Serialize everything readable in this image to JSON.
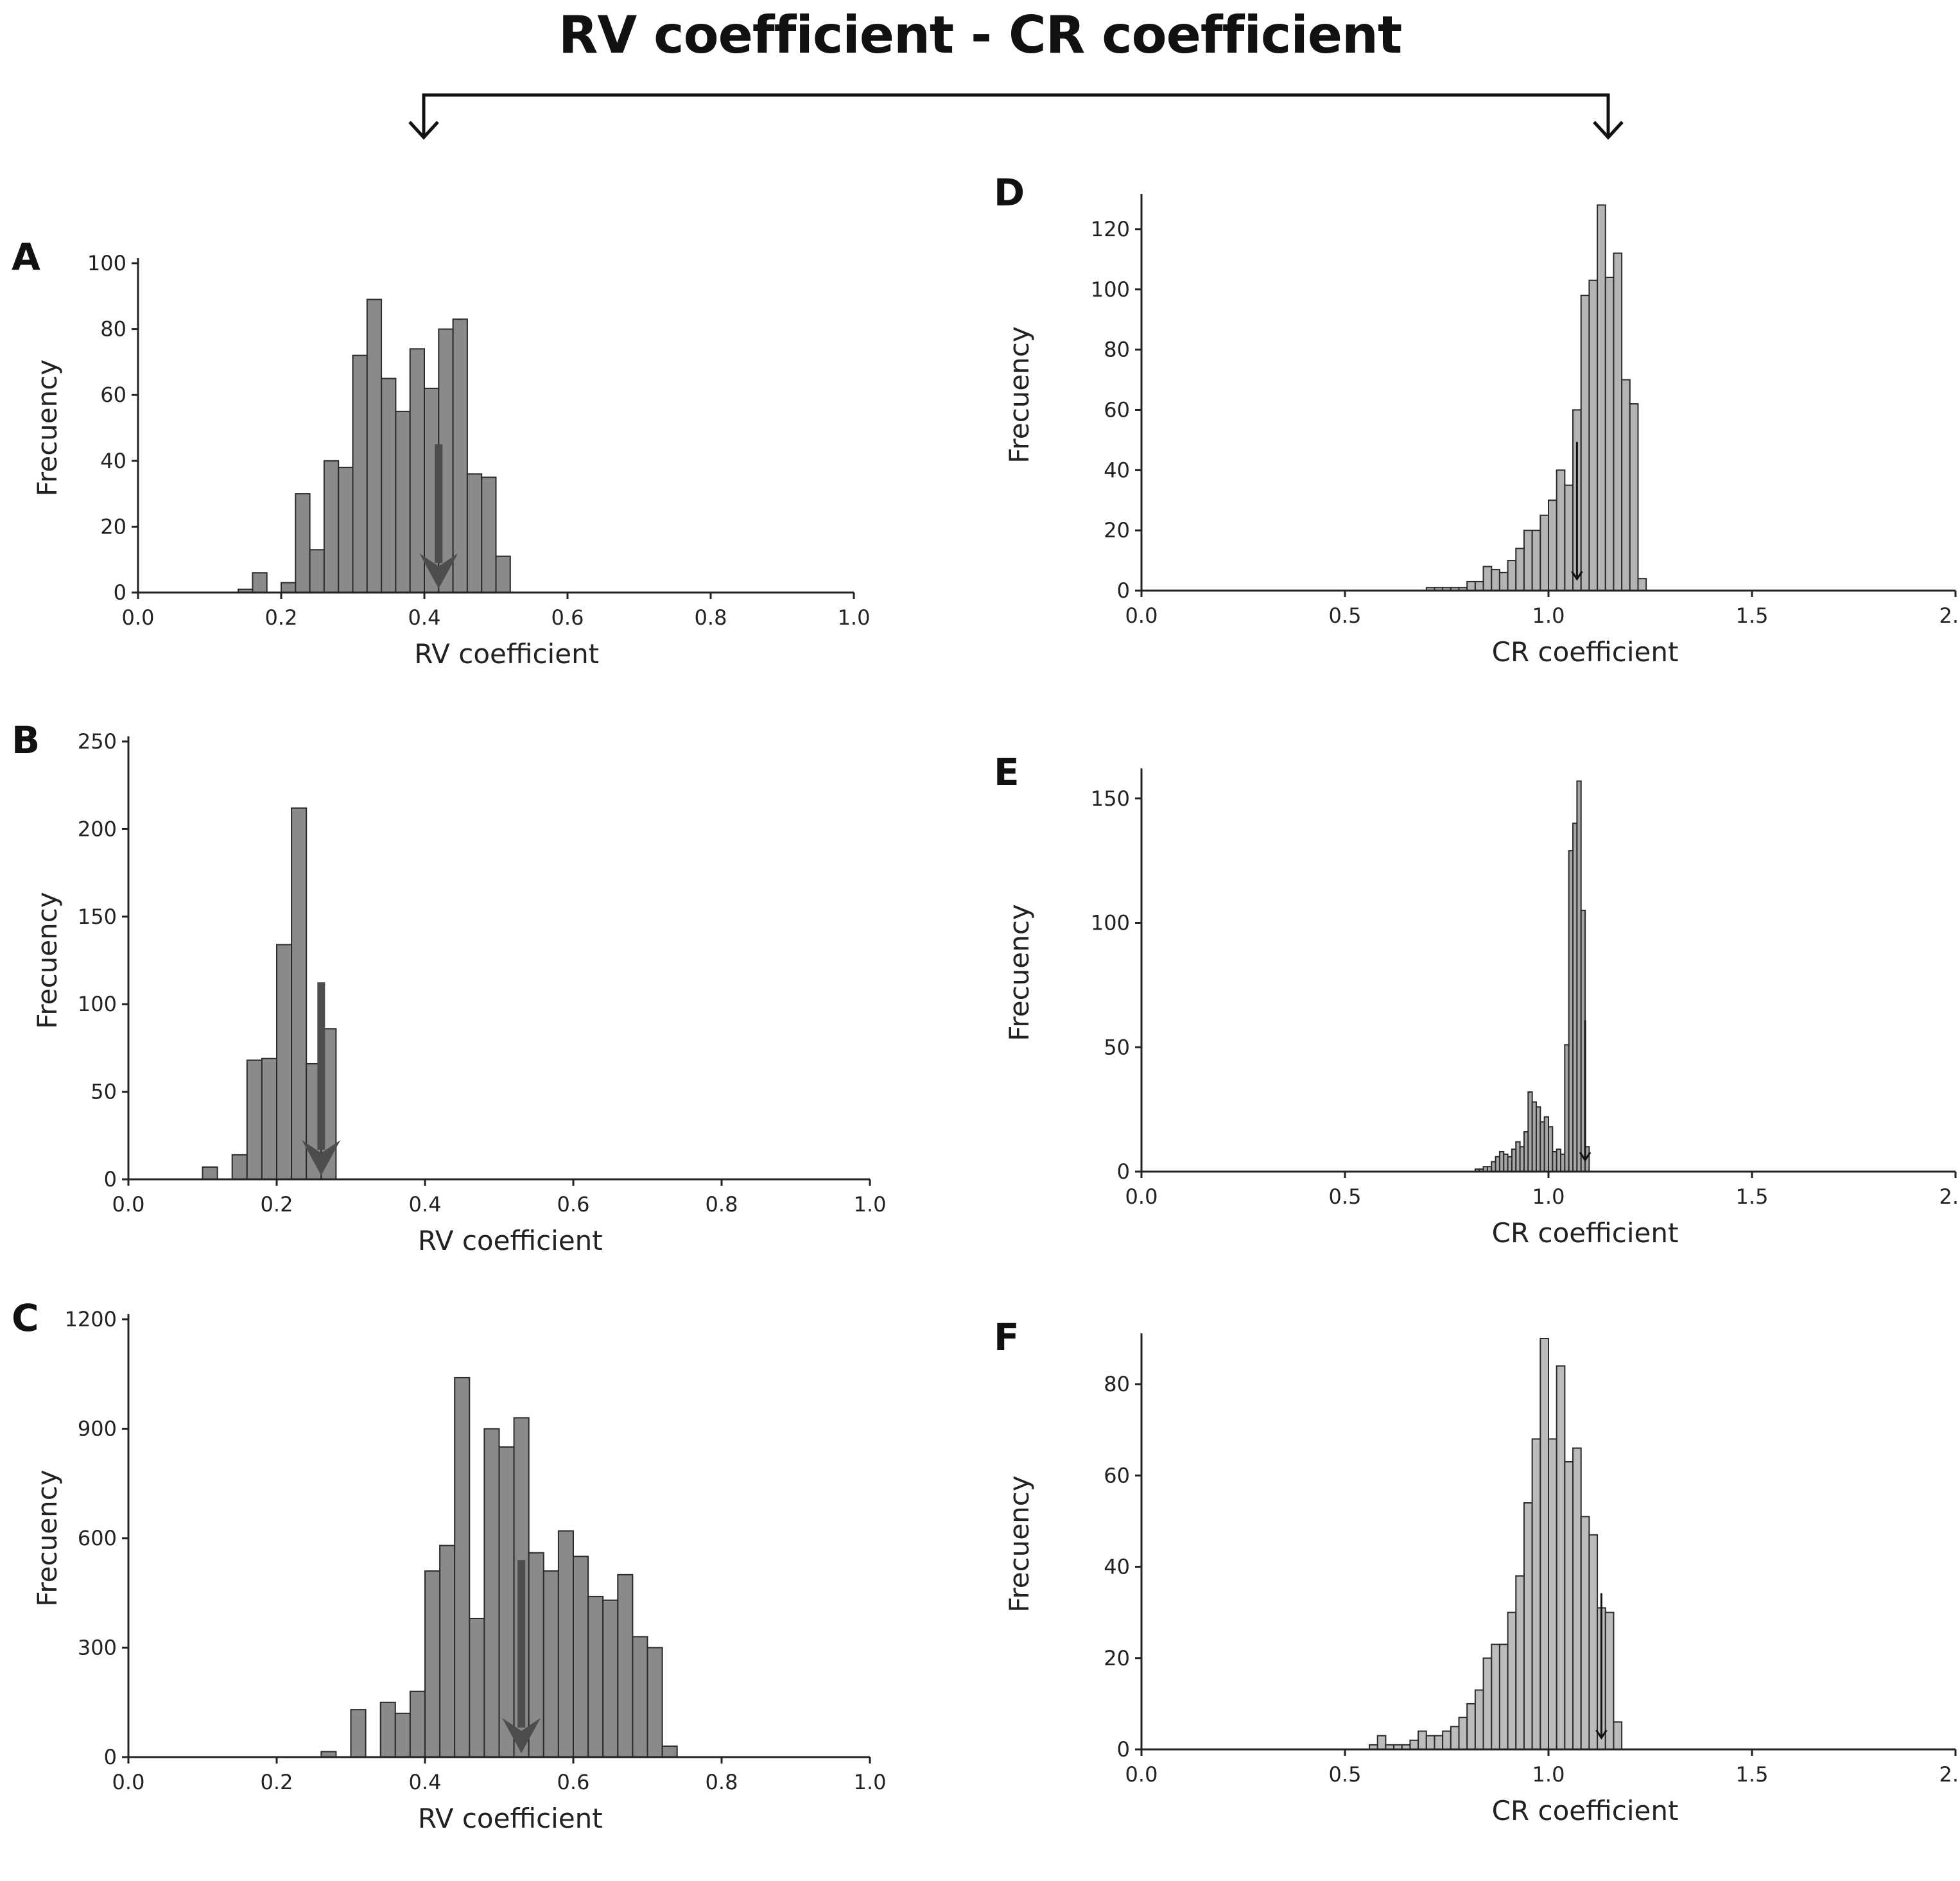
{
  "title": "RV coefficient - CR coefficient",
  "chart_data": [
    {
      "panel": "A",
      "type": "bar",
      "xlabel": "RV coefficient",
      "ylabel": "Frecuency",
      "xlim": [
        0,
        1.0
      ],
      "ylim": [
        0,
        100
      ],
      "xticks": [
        "0.0",
        "0.2",
        "0.4",
        "0.6",
        "0.8",
        "1.0"
      ],
      "xtick_values": [
        0,
        0.2,
        0.4,
        0.6,
        0.8,
        1.0
      ],
      "yticks": [
        "0",
        "20",
        "40",
        "60",
        "80",
        "100"
      ],
      "ytick_values": [
        0,
        20,
        40,
        60,
        80,
        100
      ],
      "bin_start": 0.14,
      "bin_width": 0.02,
      "values": [
        1,
        6,
        0,
        3,
        30,
        13,
        40,
        38,
        72,
        89,
        65,
        55,
        74,
        62,
        80,
        83,
        36,
        35,
        11
      ],
      "bar_color": "#8a8a8a",
      "marker": 0.42,
      "marker_size": "large"
    },
    {
      "panel": "B",
      "type": "bar",
      "xlabel": "RV coefficient",
      "ylabel": "Frecuency",
      "xlim": [
        0,
        1.0
      ],
      "ylim": [
        0,
        250
      ],
      "xticks": [
        "0.0",
        "0.2",
        "0.4",
        "0.6",
        "0.8",
        "1.0"
      ],
      "xtick_values": [
        0,
        0.2,
        0.4,
        0.6,
        0.8,
        1.0
      ],
      "yticks": [
        "0",
        "50",
        "100",
        "150",
        "200",
        "250"
      ],
      "ytick_values": [
        0,
        50,
        100,
        150,
        200,
        250
      ],
      "bin_start": 0.1,
      "bin_width": 0.02,
      "values": [
        7,
        0,
        14,
        68,
        69,
        134,
        212,
        66,
        86
      ],
      "bar_color": "#8a8a8a",
      "marker": 0.26,
      "marker_size": "large"
    },
    {
      "panel": "C",
      "type": "bar",
      "xlabel": "RV coefficient",
      "ylabel": "Frecuency",
      "xlim": [
        0,
        1.0
      ],
      "ylim": [
        0,
        1200
      ],
      "xticks": [
        "0.0",
        "0.2",
        "0.4",
        "0.6",
        "0.8",
        "1.0"
      ],
      "xtick_values": [
        0,
        0.2,
        0.4,
        0.6,
        0.8,
        1.0
      ],
      "yticks": [
        "0",
        "300",
        "600",
        "900",
        "1200"
      ],
      "ytick_values": [
        0,
        300,
        600,
        900,
        1200
      ],
      "bin_start": 0.26,
      "bin_width": 0.02,
      "values": [
        15,
        0,
        130,
        0,
        150,
        120,
        180,
        510,
        580,
        1040,
        380,
        900,
        850,
        930,
        560,
        510,
        620,
        550,
        440,
        430,
        500,
        330,
        300,
        30
      ],
      "bar_color": "#8a8a8a",
      "marker": 0.53,
      "marker_size": "large"
    },
    {
      "panel": "D",
      "type": "bar",
      "xlabel": "CR coefficient",
      "ylabel": "Frecuency",
      "xlim": [
        0,
        2.0
      ],
      "ylim": [
        0,
        130
      ],
      "xticks": [
        "0.0",
        "0.5",
        "1.0",
        "1.5",
        "2.0"
      ],
      "xtick_values": [
        0,
        0.5,
        1.0,
        1.5,
        2.0
      ],
      "yticks": [
        "0",
        "20",
        "40",
        "60",
        "80",
        "100",
        "120"
      ],
      "ytick_values": [
        0,
        20,
        40,
        60,
        80,
        100,
        120
      ],
      "bin_start": 0.7,
      "bin_width": 0.02,
      "values": [
        1,
        1,
        1,
        1,
        1,
        3,
        3,
        8,
        7,
        6,
        10,
        14,
        20,
        20,
        25,
        30,
        40,
        35,
        60,
        98,
        103,
        128,
        104,
        112,
        70,
        62,
        4
      ],
      "bar_color": "#b4b4b4",
      "marker": 1.07,
      "marker_size": "small"
    },
    {
      "panel": "E",
      "type": "bar",
      "xlabel": "CR coefficient",
      "ylabel": "Frecuency",
      "xlim": [
        0,
        2.0
      ],
      "ylim": [
        0,
        160
      ],
      "xticks": [
        "0.0",
        "0.5",
        "1.0",
        "1.5",
        "2.0"
      ],
      "xtick_values": [
        0,
        0.5,
        1.0,
        1.5,
        2.0
      ],
      "yticks": [
        "0",
        "50",
        "100",
        "150"
      ],
      "ytick_values": [
        0,
        50,
        100,
        150
      ],
      "bin_start": 0.82,
      "bin_width": 0.01,
      "values": [
        1,
        1,
        2,
        2,
        4,
        6,
        8,
        7,
        6,
        9,
        12,
        10,
        16,
        32,
        28,
        26,
        20,
        22,
        18,
        8,
        9,
        7,
        51,
        129,
        140,
        157,
        105,
        10
      ],
      "bar_color": "#a6a6a6",
      "marker": 1.09,
      "marker_size": "small"
    },
    {
      "panel": "F",
      "type": "bar",
      "xlabel": "CR coefficient",
      "ylabel": "Frecuency",
      "xlim": [
        0,
        2.0
      ],
      "ylim": [
        0,
        90
      ],
      "xticks": [
        "0.0",
        "0.5",
        "1.0",
        "1.5",
        "2.0"
      ],
      "xtick_values": [
        0,
        0.5,
        1.0,
        1.5,
        2.0
      ],
      "yticks": [
        "0",
        "20",
        "40",
        "60",
        "80"
      ],
      "ytick_values": [
        0,
        20,
        40,
        60,
        80
      ],
      "bin_start": 0.56,
      "bin_width": 0.02,
      "values": [
        1,
        3,
        1,
        1,
        1,
        2,
        4,
        3,
        3,
        4,
        5,
        7,
        10,
        13,
        20,
        23,
        23,
        30,
        38,
        54,
        68,
        90,
        68,
        84,
        63,
        66,
        51,
        47,
        31,
        30,
        6
      ],
      "bar_color": "#bcbcbc",
      "marker": 1.13,
      "marker_size": "small"
    }
  ]
}
